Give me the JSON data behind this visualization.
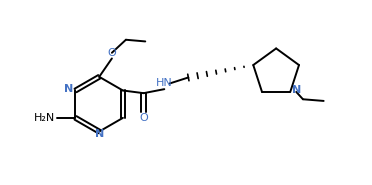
{
  "bg_color": "#ffffff",
  "line_color": "#000000",
  "heteroatom_color": "#4472c4",
  "figsize": [
    3.72,
    1.85
  ],
  "dpi": 100,
  "lw": 1.4,
  "xlim": [
    0,
    11
  ],
  "ylim": [
    0,
    5.5
  ]
}
